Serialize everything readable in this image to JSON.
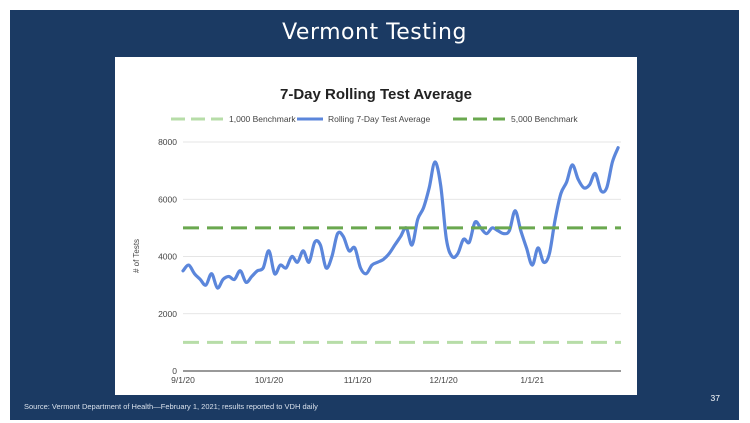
{
  "slide": {
    "title": "Vermont Testing",
    "source": "Source: Vermont Department of Health—February 1, 2021; results reported to VDH daily",
    "page_number": "37"
  },
  "colors": {
    "background": "#1b3a63",
    "rolling": "#5b86db",
    "benchmark_1000": "#b7dda8",
    "benchmark_5000": "#6aa84f"
  },
  "chart_data": {
    "type": "line",
    "title": "7-Day Rolling Test Average",
    "xlabel": "",
    "ylabel": "# of Tests",
    "ylim": [
      0,
      8000
    ],
    "yticks": [
      0,
      2000,
      4000,
      6000,
      8000
    ],
    "yticklabels": [
      "0",
      "2000",
      "4000",
      "6000",
      "8000"
    ],
    "xlim": [
      "2020-09-01",
      "2021-02-01"
    ],
    "xticks": [
      "2020-09-01",
      "2020-10-01",
      "2020-11-01",
      "2020-12-01",
      "2021-01-01"
    ],
    "xticklabels": [
      "9/1/20",
      "10/1/20",
      "11/1/20",
      "12/1/20",
      "1/1/21"
    ],
    "grid": true,
    "legend_position": "top",
    "series": [
      {
        "name": "1,000 Benchmark",
        "style": "dashed",
        "color": "#b7dda8",
        "constant": 1000
      },
      {
        "name": "Rolling 7-Day Test Average",
        "style": "solid",
        "color": "#5b86db",
        "x": [
          "2020-09-01",
          "2020-09-03",
          "2020-09-05",
          "2020-09-07",
          "2020-09-09",
          "2020-09-11",
          "2020-09-13",
          "2020-09-15",
          "2020-09-17",
          "2020-09-19",
          "2020-09-21",
          "2020-09-23",
          "2020-09-25",
          "2020-09-27",
          "2020-09-29",
          "2020-10-01",
          "2020-10-03",
          "2020-10-05",
          "2020-10-07",
          "2020-10-09",
          "2020-10-11",
          "2020-10-13",
          "2020-10-15",
          "2020-10-17",
          "2020-10-19",
          "2020-10-21",
          "2020-10-23",
          "2020-10-25",
          "2020-10-27",
          "2020-10-29",
          "2020-10-31",
          "2020-11-02",
          "2020-11-04",
          "2020-11-06",
          "2020-11-08",
          "2020-11-10",
          "2020-11-12",
          "2020-11-14",
          "2020-11-16",
          "2020-11-18",
          "2020-11-20",
          "2020-11-22",
          "2020-11-24",
          "2020-11-26",
          "2020-11-28",
          "2020-11-30",
          "2020-12-02",
          "2020-12-04",
          "2020-12-06",
          "2020-12-08",
          "2020-12-10",
          "2020-12-12",
          "2020-12-14",
          "2020-12-16",
          "2020-12-18",
          "2020-12-20",
          "2020-12-22",
          "2020-12-24",
          "2020-12-26",
          "2020-12-28",
          "2020-12-30",
          "2021-01-01",
          "2021-01-03",
          "2021-01-05",
          "2021-01-07",
          "2021-01-09",
          "2021-01-11",
          "2021-01-13",
          "2021-01-15",
          "2021-01-17",
          "2021-01-19",
          "2021-01-21",
          "2021-01-23",
          "2021-01-25",
          "2021-01-27",
          "2021-01-29",
          "2021-01-31"
        ],
        "values": [
          3500,
          3700,
          3400,
          3200,
          3000,
          3400,
          2900,
          3200,
          3300,
          3200,
          3500,
          3100,
          3300,
          3500,
          3600,
          4200,
          3400,
          3700,
          3600,
          4000,
          3800,
          4200,
          3800,
          4500,
          4400,
          3600,
          4000,
          4800,
          4700,
          4200,
          4300,
          3600,
          3400,
          3700,
          3800,
          3900,
          4100,
          4400,
          4700,
          5000,
          4400,
          5300,
          5700,
          6400,
          7300,
          6500,
          4600,
          4000,
          4100,
          4600,
          4500,
          5200,
          5000,
          4800,
          5000,
          4900,
          4800,
          4900,
          5600,
          4900,
          4300,
          3700,
          4300,
          3800,
          4100,
          5300,
          6200,
          6600,
          7200,
          6700,
          6400,
          6500,
          6900,
          6300,
          6400,
          7300,
          7800
        ]
      },
      {
        "name": "5,000 Benchmark",
        "style": "dashed",
        "color": "#6aa84f",
        "constant": 5000
      }
    ]
  }
}
